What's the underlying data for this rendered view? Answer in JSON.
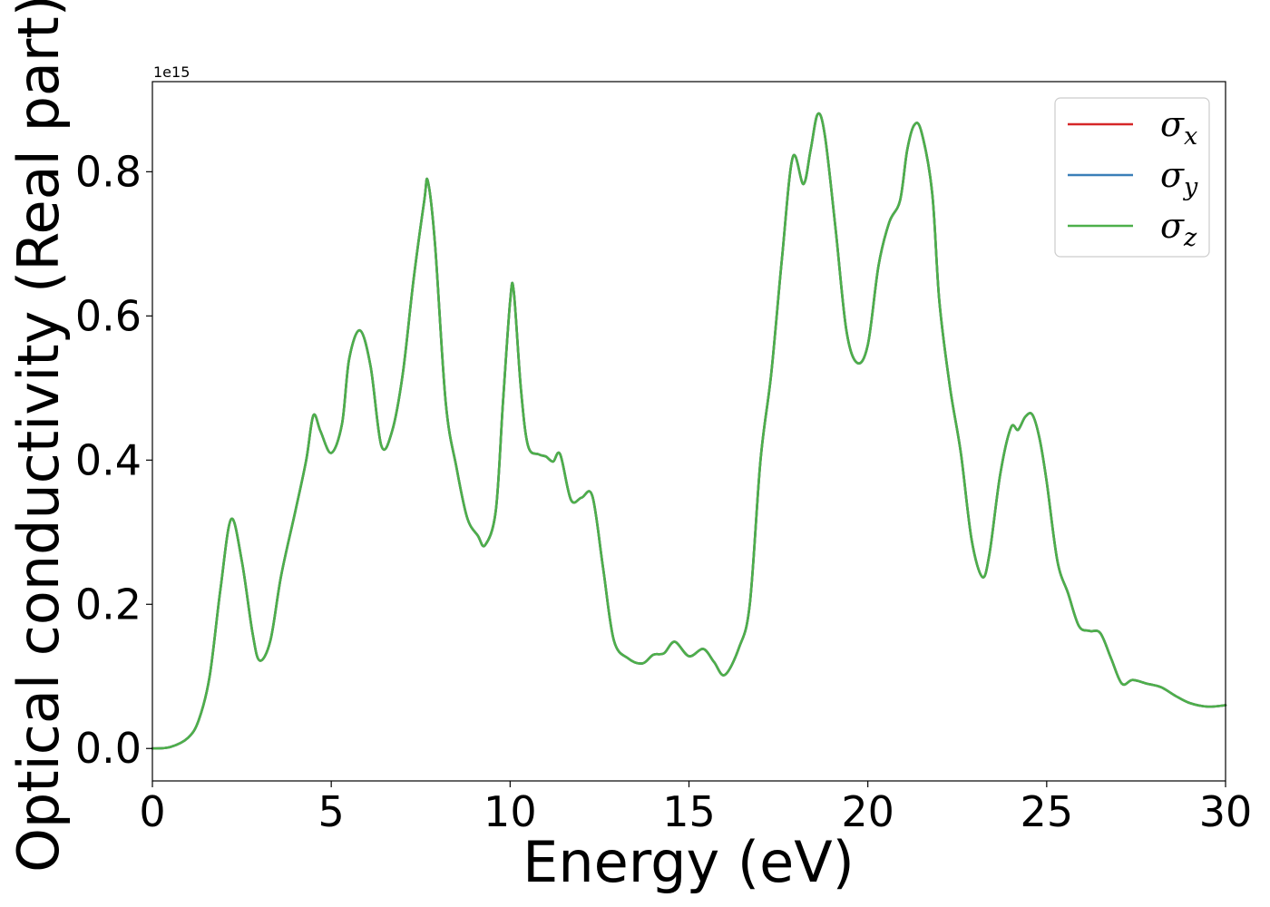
{
  "chart_data": {
    "type": "line",
    "title": "",
    "xlabel": "Energy (eV)",
    "ylabel": "Optical conductivity (Real part)",
    "y_offset_label": "1e15",
    "xlim": [
      0,
      30
    ],
    "ylim": [
      -0.045,
      0.925
    ],
    "xticks": [
      0,
      5,
      10,
      15,
      20,
      25,
      30
    ],
    "xtick_labels": [
      "0",
      "5",
      "10",
      "15",
      "20",
      "25",
      "30"
    ],
    "yticks": [
      0.0,
      0.2,
      0.4,
      0.6,
      0.8
    ],
    "ytick_labels": [
      "0.0",
      "0.2",
      "0.4",
      "0.6",
      "0.8"
    ],
    "grid": false,
    "legend_position": "top-right",
    "x": [
      0,
      0.5,
      1.0,
      1.3,
      1.6,
      1.9,
      2.2,
      2.5,
      2.8,
      3.0,
      3.3,
      3.6,
      4.0,
      4.3,
      4.5,
      4.7,
      5.0,
      5.3,
      5.5,
      5.8,
      6.1,
      6.4,
      6.7,
      7.0,
      7.3,
      7.6,
      7.7,
      7.9,
      8.2,
      8.5,
      8.8,
      9.1,
      9.3,
      9.6,
      9.8,
      10.0,
      10.1,
      10.3,
      10.5,
      10.8,
      11.0,
      11.2,
      11.4,
      11.7,
      12.0,
      12.3,
      12.6,
      12.9,
      13.3,
      13.7,
      14.0,
      14.3,
      14.6,
      15.0,
      15.4,
      15.7,
      16.0,
      16.4,
      16.7,
      17.0,
      17.3,
      17.6,
      17.9,
      18.2,
      18.4,
      18.6,
      18.8,
      19.1,
      19.4,
      19.7,
      20.0,
      20.3,
      20.6,
      20.9,
      21.1,
      21.3,
      21.5,
      21.8,
      22.0,
      22.3,
      22.6,
      22.9,
      23.2,
      23.4,
      23.7,
      24.0,
      24.2,
      24.4,
      24.6,
      24.8,
      25.0,
      25.3,
      25.6,
      25.9,
      26.2,
      26.5,
      26.8,
      27.1,
      27.4,
      27.8,
      28.2,
      28.6,
      29.0,
      29.5,
      30.0
    ],
    "series": [
      {
        "name": "σx",
        "color": "#d62728",
        "values": [
          0.0,
          0.002,
          0.015,
          0.04,
          0.1,
          0.22,
          0.318,
          0.26,
          0.16,
          0.122,
          0.15,
          0.24,
          0.33,
          0.4,
          0.462,
          0.44,
          0.41,
          0.45,
          0.54,
          0.58,
          0.53,
          0.42,
          0.44,
          0.52,
          0.65,
          0.76,
          0.787,
          0.7,
          0.48,
          0.39,
          0.32,
          0.295,
          0.282,
          0.33,
          0.48,
          0.62,
          0.635,
          0.5,
          0.42,
          0.408,
          0.405,
          0.398,
          0.408,
          0.345,
          0.348,
          0.35,
          0.25,
          0.15,
          0.125,
          0.118,
          0.13,
          0.132,
          0.148,
          0.128,
          0.138,
          0.12,
          0.102,
          0.14,
          0.2,
          0.4,
          0.52,
          0.68,
          0.82,
          0.783,
          0.83,
          0.88,
          0.85,
          0.72,
          0.58,
          0.535,
          0.56,
          0.67,
          0.73,
          0.76,
          0.83,
          0.865,
          0.855,
          0.77,
          0.62,
          0.5,
          0.41,
          0.29,
          0.238,
          0.27,
          0.38,
          0.445,
          0.442,
          0.46,
          0.463,
          0.43,
          0.37,
          0.26,
          0.215,
          0.17,
          0.163,
          0.16,
          0.125,
          0.09,
          0.095,
          0.09,
          0.085,
          0.073,
          0.063,
          0.058,
          0.06
        ]
      },
      {
        "name": "σy",
        "color": "#3a7fb8",
        "values": [
          0.0,
          0.002,
          0.015,
          0.04,
          0.1,
          0.22,
          0.318,
          0.26,
          0.16,
          0.122,
          0.15,
          0.24,
          0.33,
          0.4,
          0.462,
          0.44,
          0.41,
          0.45,
          0.54,
          0.58,
          0.53,
          0.42,
          0.44,
          0.52,
          0.65,
          0.76,
          0.787,
          0.7,
          0.48,
          0.39,
          0.32,
          0.295,
          0.282,
          0.33,
          0.48,
          0.62,
          0.635,
          0.5,
          0.42,
          0.408,
          0.405,
          0.398,
          0.408,
          0.345,
          0.348,
          0.35,
          0.25,
          0.15,
          0.125,
          0.118,
          0.13,
          0.132,
          0.148,
          0.128,
          0.138,
          0.12,
          0.102,
          0.14,
          0.2,
          0.4,
          0.52,
          0.68,
          0.82,
          0.783,
          0.83,
          0.88,
          0.85,
          0.72,
          0.58,
          0.535,
          0.56,
          0.67,
          0.73,
          0.76,
          0.83,
          0.865,
          0.855,
          0.77,
          0.62,
          0.5,
          0.41,
          0.29,
          0.238,
          0.27,
          0.38,
          0.445,
          0.442,
          0.46,
          0.463,
          0.43,
          0.37,
          0.26,
          0.215,
          0.17,
          0.163,
          0.16,
          0.125,
          0.09,
          0.095,
          0.09,
          0.085,
          0.073,
          0.063,
          0.058,
          0.06
        ]
      },
      {
        "name": "σz",
        "color": "#4daf4a",
        "values": [
          0.0,
          0.002,
          0.015,
          0.04,
          0.1,
          0.22,
          0.318,
          0.26,
          0.16,
          0.122,
          0.15,
          0.24,
          0.33,
          0.4,
          0.462,
          0.44,
          0.41,
          0.45,
          0.54,
          0.58,
          0.53,
          0.42,
          0.44,
          0.52,
          0.65,
          0.76,
          0.787,
          0.7,
          0.48,
          0.39,
          0.32,
          0.295,
          0.282,
          0.33,
          0.48,
          0.62,
          0.635,
          0.5,
          0.42,
          0.408,
          0.405,
          0.398,
          0.408,
          0.345,
          0.348,
          0.35,
          0.25,
          0.15,
          0.125,
          0.118,
          0.13,
          0.132,
          0.148,
          0.128,
          0.138,
          0.12,
          0.102,
          0.14,
          0.2,
          0.4,
          0.52,
          0.68,
          0.82,
          0.783,
          0.83,
          0.88,
          0.85,
          0.72,
          0.58,
          0.535,
          0.56,
          0.67,
          0.73,
          0.76,
          0.83,
          0.865,
          0.855,
          0.77,
          0.62,
          0.5,
          0.41,
          0.29,
          0.238,
          0.27,
          0.38,
          0.445,
          0.442,
          0.46,
          0.463,
          0.43,
          0.37,
          0.26,
          0.215,
          0.17,
          0.163,
          0.16,
          0.125,
          0.09,
          0.095,
          0.09,
          0.085,
          0.073,
          0.063,
          0.058,
          0.06
        ]
      }
    ],
    "legend": [
      {
        "base": "σ",
        "sub": "x"
      },
      {
        "base": "σ",
        "sub": "y"
      },
      {
        "base": "σ",
        "sub": "z"
      }
    ]
  }
}
